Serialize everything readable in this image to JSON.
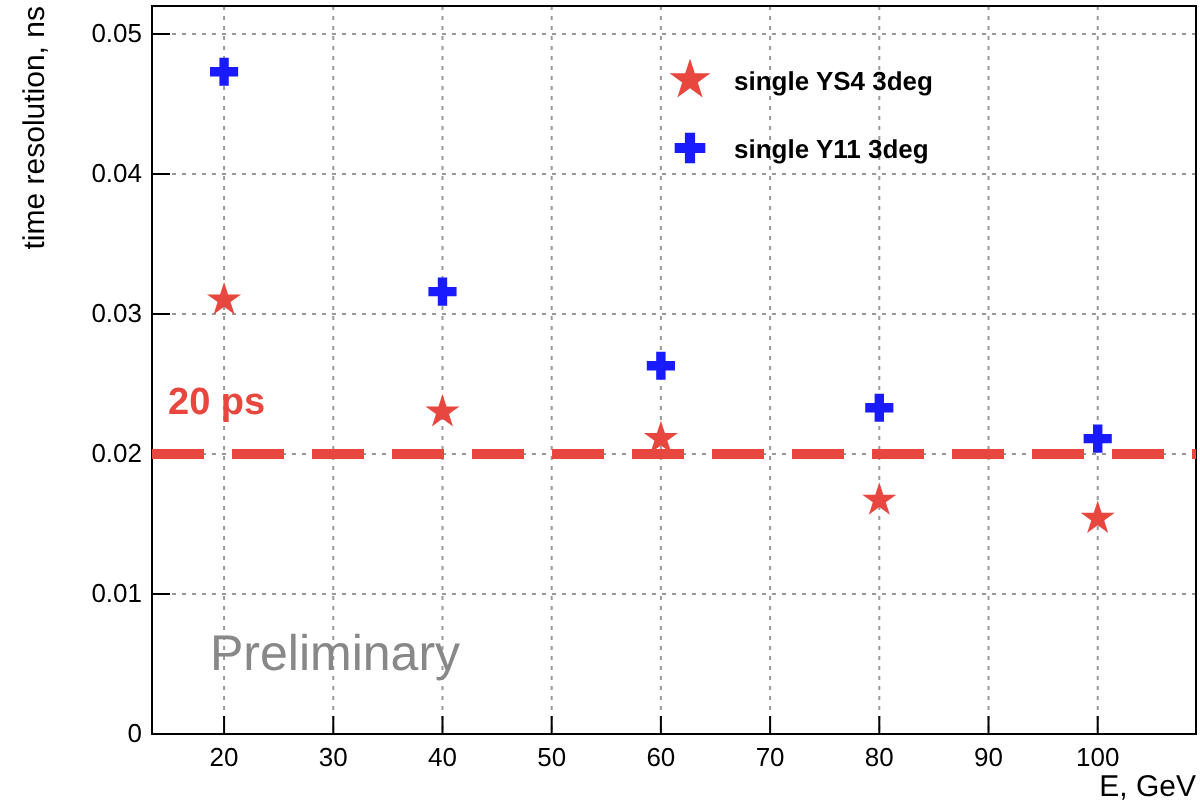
{
  "chart_data": {
    "type": "scatter",
    "xlabel": "E, GeV",
    "ylabel": "time resolution, ns",
    "x": [
      20,
      40,
      60,
      80,
      100
    ],
    "series": [
      {
        "name": "single YS4 3deg",
        "color": "#e8473f",
        "marker": "star",
        "values": [
          0.031,
          0.023,
          0.0211,
          0.0167,
          0.0154
        ]
      },
      {
        "name": "single Y11 3deg",
        "color": "#1a1aff",
        "marker": "cross",
        "values": [
          0.0473,
          0.0316,
          0.0263,
          0.0233,
          0.0211
        ]
      }
    ],
    "xlim": [
      13.4,
      109
    ],
    "ylim": [
      0,
      0.052
    ],
    "xticks": [
      20,
      30,
      40,
      50,
      60,
      70,
      80,
      90,
      100
    ],
    "yticks": [
      0,
      0.01,
      0.02,
      0.03,
      0.04,
      0.05
    ],
    "ref_lines": [
      {
        "axis": "y",
        "value": 0.02,
        "label": "20 ps",
        "color": "#e8473f",
        "line_style": "dashed"
      }
    ],
    "annotations": [
      "Preliminary"
    ],
    "grid": true,
    "legend": "top right"
  }
}
